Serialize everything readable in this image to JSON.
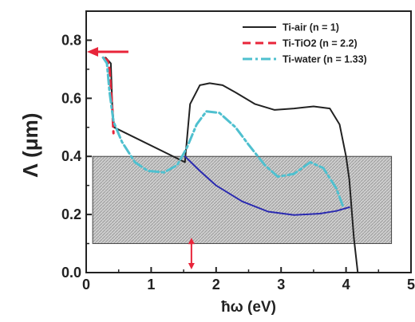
{
  "chart_data": {
    "type": "line",
    "xlabel": "ħω (eV)",
    "ylabel": "Λ (μm)",
    "xlim": [
      0,
      5
    ],
    "ylim": [
      0,
      0.9
    ],
    "xticks": [
      "0",
      "1",
      "2",
      "3",
      "4",
      "5"
    ],
    "yticks": [
      "0.0",
      "0.2",
      "0.4",
      "0.6",
      "0.8"
    ],
    "grid": false,
    "legend_position": "top-right",
    "series": [
      {
        "name": "Ti-air  (n = 1)",
        "color": "#222222",
        "dash": "solid",
        "points": [
          [
            0.3,
            0.74
          ],
          [
            0.38,
            0.72
          ],
          [
            0.4,
            0.58
          ],
          [
            0.43,
            0.5
          ],
          [
            1.52,
            0.38
          ],
          [
            1.6,
            0.58
          ],
          [
            1.75,
            0.645
          ],
          [
            1.9,
            0.652
          ],
          [
            2.1,
            0.645
          ],
          [
            2.3,
            0.62
          ],
          [
            2.6,
            0.58
          ],
          [
            2.9,
            0.56
          ],
          [
            3.2,
            0.565
          ],
          [
            3.5,
            0.572
          ],
          [
            3.75,
            0.565
          ],
          [
            3.9,
            0.51
          ],
          [
            4.0,
            0.4
          ],
          [
            4.05,
            0.32
          ],
          [
            4.12,
            0.12
          ],
          [
            4.18,
            0.0
          ]
        ]
      },
      {
        "name": "Ti-TiO2 (n = 2.2)",
        "color": "#e8253a",
        "dash": "dashed",
        "points": [
          [
            0.26,
            0.74
          ],
          [
            0.3,
            0.735
          ],
          [
            0.33,
            0.73
          ],
          [
            0.36,
            0.7
          ],
          [
            0.38,
            0.63
          ],
          [
            0.4,
            0.57
          ],
          [
            0.42,
            0.48
          ]
        ]
      },
      {
        "name": "Ti-water (n = 1.33)",
        "color": "#4fc0cf",
        "dash": "dashdot",
        "points": [
          [
            0.26,
            0.74
          ],
          [
            0.32,
            0.72
          ],
          [
            0.36,
            0.62
          ],
          [
            0.42,
            0.52
          ],
          [
            0.55,
            0.45
          ],
          [
            0.75,
            0.38
          ],
          [
            0.95,
            0.35
          ],
          [
            1.2,
            0.345
          ],
          [
            1.4,
            0.37
          ],
          [
            1.55,
            0.43
          ],
          [
            1.7,
            0.51
          ],
          [
            1.85,
            0.555
          ],
          [
            2.05,
            0.55
          ],
          [
            2.3,
            0.5
          ],
          [
            2.5,
            0.44
          ],
          [
            2.75,
            0.37
          ],
          [
            2.95,
            0.33
          ],
          [
            3.2,
            0.34
          ],
          [
            3.45,
            0.38
          ],
          [
            3.65,
            0.36
          ],
          [
            3.85,
            0.29
          ],
          [
            3.95,
            0.23
          ]
        ]
      },
      {
        "name": "",
        "color": "#2a2ab0",
        "dash": "solid",
        "points": [
          [
            1.52,
            0.4
          ],
          [
            1.75,
            0.35
          ],
          [
            2.0,
            0.3
          ],
          [
            2.4,
            0.245
          ],
          [
            2.8,
            0.21
          ],
          [
            3.2,
            0.198
          ],
          [
            3.6,
            0.203
          ],
          [
            3.85,
            0.212
          ],
          [
            4.05,
            0.225
          ]
        ]
      }
    ],
    "shaded_band": {
      "x": [
        0.1,
        4.7
      ],
      "y": [
        0.1,
        0.4
      ]
    },
    "annotations": [
      {
        "type": "arrow",
        "direction": "left",
        "color": "#e8253a",
        "at_y": 0.76,
        "x_from": 0.65,
        "x_to": 0.0
      },
      {
        "type": "double-arrow",
        "direction": "vertical",
        "color": "#e8253a",
        "at_x": 1.62,
        "y_from": 0.12,
        "y_to": 0.0
      }
    ]
  }
}
